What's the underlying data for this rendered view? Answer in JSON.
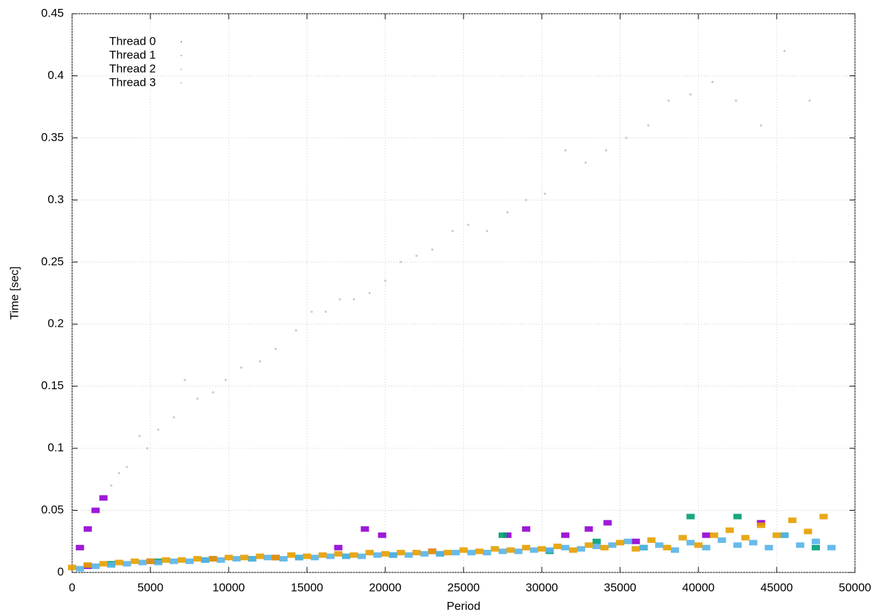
{
  "chart_data": {
    "type": "scatter",
    "x_label": "Period",
    "y_label": "Time [sec]",
    "xlim": [
      0,
      50000
    ],
    "xticks": [
      0,
      5000,
      10000,
      15000,
      20000,
      25000,
      30000,
      35000,
      40000,
      45000,
      50000
    ],
    "ylim": [
      0,
      0.45
    ],
    "yticks": [
      0,
      0.05,
      0.1,
      0.15,
      0.2,
      0.25,
      0.3,
      0.35,
      0.4,
      0.45
    ],
    "grid": true,
    "legend": "top-left",
    "series": [
      {
        "name": "Thread 0",
        "color": "#9400d3",
        "x": [
          1000,
          5000,
          9000,
          13000,
          17000,
          18700,
          19800,
          23000,
          27800,
          29000,
          31500,
          33000,
          34200,
          36000,
          40500,
          44000,
          500,
          1000,
          1500,
          2000,
          2500,
          3000,
          3500,
          4300,
          4800,
          5500,
          6500,
          7200,
          8000,
          9000,
          9800,
          10800,
          12000,
          13000,
          14300,
          15300,
          16200,
          17100,
          18000,
          19000,
          20000,
          21000,
          22000,
          23000,
          24300,
          25300,
          26500,
          27800,
          29000,
          30200,
          31500,
          32800,
          34100,
          35400,
          36800,
          38100,
          39500,
          40900,
          42400,
          44000,
          45500,
          47100
        ],
        "values": [
          0.005,
          0.009,
          0.011,
          0.012,
          0.02,
          0.035,
          0.03,
          0.017,
          0.03,
          0.035,
          0.03,
          0.035,
          0.04,
          0.025,
          0.03,
          0.04,
          0.02,
          0.035,
          0.05,
          0.06,
          0.07,
          0.08,
          0.085,
          0.11,
          0.1,
          0.115,
          0.125,
          0.155,
          0.14,
          0.145,
          0.155,
          0.165,
          0.17,
          0.18,
          0.195,
          0.21,
          0.21,
          0.22,
          0.22,
          0.225,
          0.235,
          0.25,
          0.255,
          0.26,
          0.275,
          0.28,
          0.275,
          0.29,
          0.3,
          0.305,
          0.34,
          0.33,
          0.34,
          0.35,
          0.36,
          0.38,
          0.385,
          0.395,
          0.38,
          0.36,
          0.42,
          0.38
        ]
      },
      {
        "name": "Thread 1",
        "color": "#009e73",
        "x": [
          2500,
          5500,
          8500,
          11500,
          14500,
          17500,
          20500,
          23500,
          27500,
          30500,
          33500,
          36500,
          39500,
          42500,
          45500,
          47500
        ],
        "values": [
          0.007,
          0.009,
          0.01,
          0.011,
          0.012,
          0.013,
          0.014,
          0.015,
          0.03,
          0.017,
          0.025,
          0.02,
          0.045,
          0.045,
          0.03,
          0.02
        ]
      },
      {
        "name": "Thread 2",
        "color": "#56b4e9",
        "x": [
          500,
          1500,
          2500,
          3500,
          4500,
          5500,
          6500,
          7500,
          8500,
          9500,
          10500,
          11500,
          12500,
          13500,
          14500,
          15500,
          16500,
          17500,
          18500,
          19500,
          20500,
          21500,
          22500,
          23500,
          24500,
          25500,
          26500,
          27500,
          28500,
          29500,
          30500,
          31500,
          32500,
          33500,
          34500,
          35500,
          36500,
          37500,
          38500,
          39500,
          40500,
          41500,
          42500,
          43500,
          44500,
          45500,
          46500,
          47500,
          48500
        ],
        "values": [
          0.003,
          0.005,
          0.006,
          0.007,
          0.008,
          0.008,
          0.009,
          0.009,
          0.01,
          0.01,
          0.011,
          0.011,
          0.012,
          0.011,
          0.012,
          0.012,
          0.013,
          0.013,
          0.013,
          0.014,
          0.014,
          0.014,
          0.015,
          0.015,
          0.016,
          0.016,
          0.016,
          0.017,
          0.017,
          0.018,
          0.018,
          0.02,
          0.019,
          0.021,
          0.022,
          0.025,
          0.02,
          0.022,
          0.018,
          0.024,
          0.02,
          0.026,
          0.022,
          0.024,
          0.02,
          0.03,
          0.022,
          0.025,
          0.02
        ]
      },
      {
        "name": "Thread 3",
        "color": "#e69f00",
        "x": [
          0,
          1000,
          2000,
          3000,
          4000,
          5000,
          6000,
          7000,
          8000,
          9000,
          10000,
          11000,
          12000,
          13000,
          14000,
          15000,
          16000,
          17000,
          18000,
          19000,
          20000,
          21000,
          22000,
          23000,
          24000,
          25000,
          26000,
          27000,
          28000,
          29000,
          30000,
          31000,
          32000,
          33000,
          34000,
          35000,
          36000,
          37000,
          38000,
          39000,
          40000,
          41000,
          42000,
          43000,
          44000,
          45000,
          46000,
          47000,
          48000
        ],
        "values": [
          0.004,
          0.006,
          0.007,
          0.008,
          0.009,
          0.009,
          0.01,
          0.01,
          0.011,
          0.011,
          0.012,
          0.012,
          0.013,
          0.012,
          0.014,
          0.013,
          0.014,
          0.015,
          0.014,
          0.016,
          0.015,
          0.016,
          0.016,
          0.017,
          0.016,
          0.018,
          0.017,
          0.019,
          0.018,
          0.02,
          0.019,
          0.021,
          0.018,
          0.022,
          0.02,
          0.024,
          0.019,
          0.026,
          0.02,
          0.028,
          0.022,
          0.03,
          0.034,
          0.028,
          0.038,
          0.03,
          0.042,
          0.033,
          0.045
        ]
      }
    ]
  }
}
